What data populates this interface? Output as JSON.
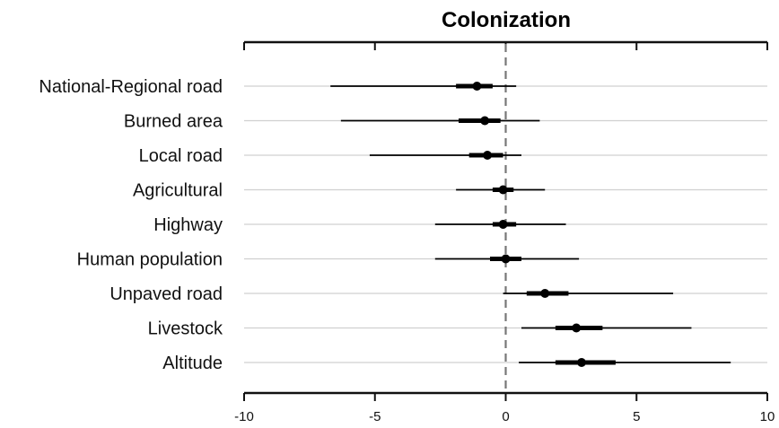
{
  "chart_data": {
    "type": "forest",
    "title": "Colonization",
    "xlim": [
      -10,
      10
    ],
    "xticks": [
      -10,
      -5,
      0,
      5,
      10
    ],
    "reference_line": 0,
    "grid": "horizontal",
    "categories": [
      "National-Regional road",
      "Burned area",
      "Local road",
      "Agricultural",
      "Highway",
      "Human population",
      "Unpaved road",
      "Livestock",
      "Altitude"
    ],
    "estimates": [
      {
        "label": "National-Regional road",
        "estimate": -1.1,
        "inner": [
          -1.9,
          -0.5
        ],
        "outer": [
          -6.7,
          0.4
        ]
      },
      {
        "label": "Burned area",
        "estimate": -0.8,
        "inner": [
          -1.8,
          -0.2
        ],
        "outer": [
          -6.3,
          1.3
        ]
      },
      {
        "label": "Local road",
        "estimate": -0.7,
        "inner": [
          -1.4,
          -0.1
        ],
        "outer": [
          -5.2,
          0.6
        ]
      },
      {
        "label": "Agricultural",
        "estimate": -0.1,
        "inner": [
          -0.5,
          0.3
        ],
        "outer": [
          -1.9,
          1.5
        ]
      },
      {
        "label": "Highway",
        "estimate": -0.1,
        "inner": [
          -0.5,
          0.4
        ],
        "outer": [
          -2.7,
          2.3
        ]
      },
      {
        "label": "Human population",
        "estimate": 0.0,
        "inner": [
          -0.6,
          0.6
        ],
        "outer": [
          -2.7,
          2.8
        ]
      },
      {
        "label": "Unpaved road",
        "estimate": 1.5,
        "inner": [
          0.8,
          2.4
        ],
        "outer": [
          -0.1,
          6.4
        ]
      },
      {
        "label": "Livestock",
        "estimate": 2.7,
        "inner": [
          1.9,
          3.7
        ],
        "outer": [
          0.6,
          7.1
        ]
      },
      {
        "label": "Altitude",
        "estimate": 2.9,
        "inner": [
          1.9,
          4.2
        ],
        "outer": [
          0.5,
          8.6
        ]
      }
    ]
  }
}
